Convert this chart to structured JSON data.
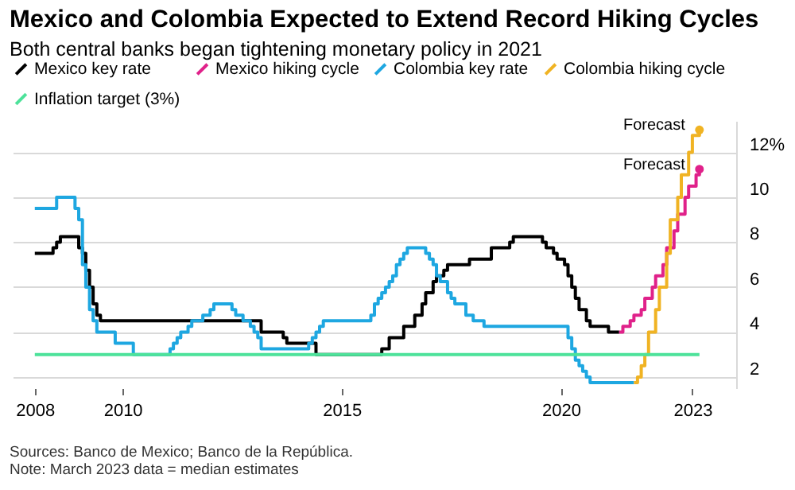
{
  "chart_data": {
    "type": "step",
    "title": "Mexico and Colombia Expected to Extend Record Hiking Cycles",
    "subtitle": "Both central banks began tightening monetary policy in 2021",
    "annotations": [
      {
        "text": "Forecast",
        "x": "2023-03",
        "y": 13.0
      },
      {
        "text": "Forecast",
        "x": "2023-03",
        "y": 11.25
      },
      "Sources: Banco de Mexico; Banco de la República.",
      "Note: March 2023 data = median estimates"
    ],
    "series": [
      {
        "name": "Mexico key rate",
        "color": "#000000",
        "x": [
          "2008-01",
          "2008-06",
          "2008-07",
          "2008-08",
          "2009-01",
          "2009-02",
          "2009-03",
          "2009-04",
          "2009-05",
          "2009-06",
          "2009-07",
          "2013-03",
          "2013-09",
          "2013-10",
          "2014-06",
          "2015-12",
          "2016-02",
          "2016-06",
          "2016-09",
          "2016-11",
          "2016-12",
          "2017-02",
          "2017-03",
          "2017-05",
          "2017-06",
          "2017-12",
          "2018-06",
          "2018-11",
          "2018-12",
          "2019-08",
          "2019-09",
          "2019-11",
          "2019-12",
          "2020-02",
          "2020-03",
          "2020-04",
          "2020-05",
          "2020-06",
          "2020-08",
          "2020-09",
          "2021-02",
          "2021-05"
        ],
        "values": [
          7.5,
          7.75,
          8.0,
          8.25,
          7.75,
          7.5,
          6.75,
          6.0,
          5.25,
          4.75,
          4.5,
          4.0,
          3.75,
          3.5,
          3.0,
          3.25,
          3.75,
          4.25,
          4.75,
          5.25,
          5.75,
          6.25,
          6.5,
          6.75,
          7.0,
          7.25,
          7.75,
          8.0,
          8.25,
          8.0,
          7.75,
          7.5,
          7.25,
          7.0,
          6.5,
          6.0,
          5.5,
          5.0,
          4.5,
          4.25,
          4.0,
          4.0
        ]
      },
      {
        "name": "Mexico hiking cycle",
        "color": "#e0218a",
        "x": [
          "2021-05",
          "2021-06",
          "2021-08",
          "2021-09",
          "2021-11",
          "2021-12",
          "2022-02",
          "2022-03",
          "2022-05",
          "2022-06",
          "2022-08",
          "2022-09",
          "2022-11",
          "2022-12",
          "2023-02",
          "2023-03"
        ],
        "values": [
          4.0,
          4.25,
          4.5,
          4.75,
          5.0,
          5.5,
          6.0,
          6.5,
          7.0,
          7.75,
          8.5,
          9.25,
          10.0,
          10.5,
          11.0,
          11.25
        ]
      },
      {
        "name": "Colombia key rate",
        "color": "#1ea7e1",
        "x": [
          "2008-01",
          "2008-07",
          "2008-12",
          "2009-01",
          "2009-02",
          "2009-03",
          "2009-04",
          "2009-05",
          "2009-06",
          "2009-11",
          "2010-04",
          "2011-02",
          "2011-03",
          "2011-04",
          "2011-05",
          "2011-07",
          "2011-08",
          "2011-11",
          "2012-01",
          "2012-02",
          "2012-07",
          "2012-08",
          "2012-10",
          "2012-12",
          "2013-01",
          "2013-02",
          "2013-03",
          "2014-04",
          "2014-05",
          "2014-06",
          "2014-07",
          "2014-08",
          "2015-09",
          "2015-10",
          "2015-11",
          "2015-12",
          "2016-01",
          "2016-02",
          "2016-03",
          "2016-04",
          "2016-05",
          "2016-06",
          "2016-07",
          "2016-12",
          "2017-01",
          "2017-02",
          "2017-03",
          "2017-04",
          "2017-06",
          "2017-07",
          "2017-08",
          "2017-11",
          "2018-01",
          "2018-04",
          "2020-03",
          "2020-04",
          "2020-05",
          "2020-06",
          "2020-07",
          "2020-08",
          "2020-09",
          "2021-09"
        ],
        "values": [
          9.5,
          10.0,
          9.5,
          9.0,
          7.0,
          6.0,
          5.0,
          4.5,
          4.0,
          3.5,
          3.0,
          3.25,
          3.5,
          3.75,
          4.0,
          4.25,
          4.5,
          4.75,
          5.0,
          5.25,
          5.0,
          4.75,
          4.5,
          4.25,
          4.0,
          3.75,
          3.25,
          3.5,
          3.75,
          4.0,
          4.25,
          4.5,
          4.75,
          5.25,
          5.5,
          5.75,
          6.0,
          6.25,
          6.5,
          7.0,
          7.25,
          7.5,
          7.75,
          7.5,
          7.25,
          7.0,
          6.5,
          6.25,
          5.75,
          5.5,
          5.25,
          4.75,
          4.5,
          4.25,
          3.75,
          3.25,
          2.75,
          2.5,
          2.25,
          2.0,
          1.75,
          1.75
        ]
      },
      {
        "name": "Colombia hiking cycle",
        "color": "#f0b323",
        "x": [
          "2021-09",
          "2021-10",
          "2021-11",
          "2021-12",
          "2022-01",
          "2022-03",
          "2022-04",
          "2022-06",
          "2022-07",
          "2022-09",
          "2022-10",
          "2022-12",
          "2023-01",
          "2023-03"
        ],
        "values": [
          1.75,
          2.0,
          2.5,
          3.0,
          4.0,
          5.0,
          6.0,
          7.5,
          9.0,
          10.0,
          11.0,
          12.0,
          12.75,
          13.0
        ]
      },
      {
        "name": "Inflation target (3%)",
        "color": "#4de29a",
        "type": "line",
        "x": [
          "2008-01",
          "2023-03"
        ],
        "values": [
          3,
          3
        ]
      }
    ],
    "xlim": [
      "2007-07",
      "2024-01"
    ],
    "xticks": [
      "2008",
      "2010",
      "2015",
      "2020",
      "2023"
    ],
    "ylim": [
      1.5,
      13.4
    ],
    "yticks": [
      2,
      4,
      6,
      8,
      10,
      {
        "value": 12,
        "label": "12%"
      }
    ],
    "grid": "y",
    "legend": "top left"
  }
}
